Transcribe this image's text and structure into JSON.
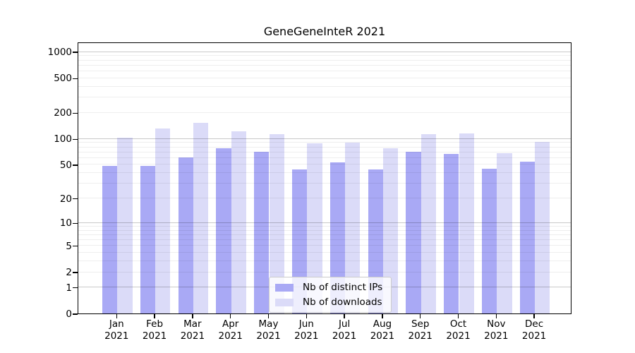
{
  "chart_data": {
    "type": "bar",
    "title": "GeneGeneInteR 2021",
    "year": "2021",
    "categories": [
      "Jan",
      "Feb",
      "Mar",
      "Apr",
      "May",
      "Jun",
      "Jul",
      "Aug",
      "Sep",
      "Oct",
      "Nov",
      "Dec"
    ],
    "series": [
      {
        "name": "Nb of distinct IPs",
        "color": "#a9a9f5",
        "values": [
          48,
          48,
          61,
          77,
          70,
          44,
          53,
          44,
          70,
          66,
          45,
          54
        ]
      },
      {
        "name": "Nb of downloads",
        "color": "#dbdbf8",
        "values": [
          102,
          130,
          153,
          121,
          113,
          88,
          90,
          78,
          112,
          114,
          68,
          92
        ]
      }
    ],
    "yscale": "log10(1+y)",
    "yticks": [
      1000,
      500,
      200,
      100,
      50,
      20,
      10,
      5,
      2,
      1,
      0
    ],
    "ylim": [
      0,
      1300
    ],
    "xlabel": "",
    "ylabel": "",
    "grid": "horizontal major and minor gridlines drawn over bars",
    "legend_position": "inside bottom-center"
  },
  "colors": {
    "bar_distinct_ips": "#a9a9f5",
    "bar_downloads": "#dbdbf8",
    "grid_major": "#cccccc",
    "grid_minor": "#ededed",
    "axis_spine": "#000000",
    "legend_border": "#cccccc",
    "background": "#ffffff"
  }
}
